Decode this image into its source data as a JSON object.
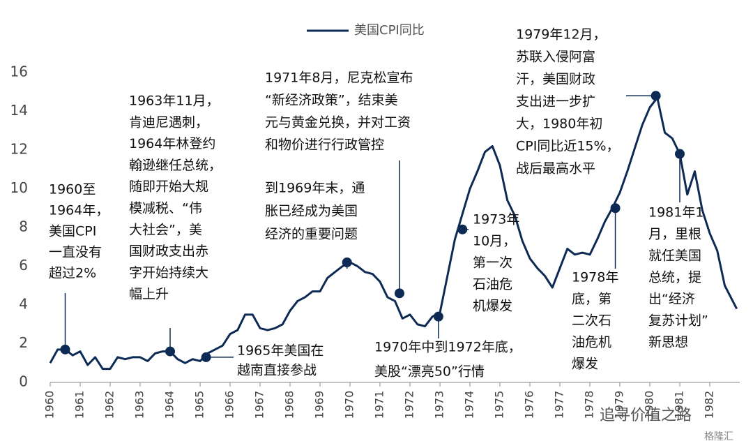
{
  "chart_data": {
    "type": "line",
    "series": [
      {
        "name": "美国CPI同比",
        "color": "#0d2a55",
        "x": [
          1960.0,
          1960.25,
          1960.5,
          1960.75,
          1961.0,
          1961.25,
          1961.5,
          1961.75,
          1962.0,
          1962.25,
          1962.5,
          1962.75,
          1963.0,
          1963.25,
          1963.5,
          1963.75,
          1964.0,
          1964.25,
          1964.5,
          1964.75,
          1965.0,
          1965.25,
          1965.5,
          1965.75,
          1966.0,
          1966.25,
          1966.5,
          1966.75,
          1967.0,
          1967.25,
          1967.5,
          1967.75,
          1968.0,
          1968.25,
          1968.5,
          1968.75,
          1969.0,
          1969.25,
          1969.5,
          1969.75,
          1970.0,
          1970.25,
          1970.5,
          1970.75,
          1971.0,
          1971.25,
          1971.5,
          1971.75,
          1972.0,
          1972.25,
          1972.5,
          1972.75,
          1973.0,
          1973.25,
          1973.5,
          1973.75,
          1974.0,
          1974.25,
          1974.5,
          1974.75,
          1975.0,
          1975.25,
          1975.5,
          1975.75,
          1976.0,
          1976.25,
          1976.5,
          1976.75,
          1977.0,
          1977.25,
          1977.5,
          1977.75,
          1978.0,
          1978.25,
          1978.5,
          1978.75,
          1979.0,
          1979.25,
          1979.5,
          1979.75,
          1980.0,
          1980.25,
          1980.5,
          1980.75,
          1981.0,
          1981.25,
          1981.5,
          1981.75,
          1982.0,
          1982.25,
          1982.5,
          1982.9
        ],
        "values": [
          1.0,
          1.7,
          1.7,
          1.4,
          1.6,
          0.9,
          1.3,
          0.7,
          0.7,
          1.3,
          1.2,
          1.3,
          1.3,
          1.1,
          1.5,
          1.6,
          1.6,
          1.2,
          1.0,
          1.2,
          1.1,
          1.5,
          1.7,
          1.9,
          2.5,
          2.7,
          3.5,
          3.5,
          2.8,
          2.7,
          2.8,
          3.0,
          3.7,
          4.2,
          4.4,
          4.7,
          4.7,
          5.4,
          5.7,
          6.0,
          6.2,
          6.0,
          5.7,
          5.6,
          5.2,
          4.4,
          4.2,
          3.3,
          3.5,
          3.0,
          2.9,
          3.4,
          3.6,
          5.5,
          7.4,
          8.7,
          10.0,
          10.9,
          11.9,
          12.2,
          11.2,
          9.4,
          8.6,
          7.3,
          6.4,
          5.9,
          5.5,
          4.9,
          5.9,
          6.9,
          6.6,
          6.7,
          6.6,
          7.4,
          8.3,
          9.0,
          9.8,
          10.9,
          12.1,
          13.3,
          14.2,
          14.7,
          12.9,
          12.6,
          11.8,
          9.7,
          10.9,
          8.9,
          7.7,
          6.8,
          5.0,
          3.8
        ]
      }
    ],
    "xlim": [
      1960,
      1983
    ],
    "xticks": [
      1960,
      1961,
      1962,
      1963,
      1964,
      1965,
      1966,
      1967,
      1968,
      1969,
      1970,
      1971,
      1972,
      1973,
      1974,
      1975,
      1976,
      1977,
      1978,
      1979,
      1980,
      1981,
      1982
    ],
    "ylim": [
      0,
      16
    ],
    "yticks": [
      0,
      2,
      4,
      6,
      8,
      10,
      12,
      14,
      16
    ],
    "annotations": [
      {
        "text": [
          "1960至",
          "1964年，",
          "美国CPI",
          "一直没有",
          "超过2%"
        ],
        "x": 1960.5,
        "y": 1.7
      },
      {
        "text": [
          "1963年11月，",
          "肯迪尼遇刺，",
          "1964年林登约",
          "翰逊继任总统，",
          "随即开始大规",
          "模减税、“伟",
          "大社会”，美",
          "国财政支出赤",
          "字开始持续大",
          "幅上升"
        ],
        "x": 1964.0,
        "y": 1.6
      },
      {
        "text": [
          "1965年美国在",
          "越南直接参战"
        ],
        "x": 1965.2,
        "y": 1.3
      },
      {
        "text": [
          "1971年8月，尼克松宣布",
          "“新经济政策”，结束美",
          "元与黄金兑换，并对工资",
          "和物价进行行政管控"
        ],
        "x": 1971.65,
        "y": 4.6
      },
      {
        "text": [
          "到1969年末，通",
          "胀已经成为美国",
          "经济的重要问题"
        ],
        "x": 1969.9,
        "y": 6.2
      },
      {
        "text": [
          "1970年中到1972年底，",
          "美股“漂亮50”行情"
        ],
        "x": 1972.95,
        "y": 3.4
      },
      {
        "text": [
          "1973年",
          "10月，",
          "第一次",
          "石油危",
          "机爆发"
        ],
        "x": 1973.75,
        "y": 7.9
      },
      {
        "text": [
          "1979年12月，",
          "苏联入侵阿富",
          "汗，美国财政",
          "支出进一步扩",
          "大，1980年初",
          "CPI同比近15%，",
          "战后最高水平"
        ],
        "x": 1980.2,
        "y": 14.8
      },
      {
        "text": [
          "1978年",
          "底，第",
          "二次石",
          "油危机",
          "爆发"
        ],
        "x": 1978.85,
        "y": 9.0
      },
      {
        "text": [
          "1981年1",
          "月，里根",
          "就任美国",
          "总统，提",
          "出“经济",
          "复苏计划”",
          "新思想"
        ],
        "x": 1981.0,
        "y": 11.8
      }
    ],
    "watermark": [
      "追寻价值之路",
      "格隆汇"
    ]
  }
}
